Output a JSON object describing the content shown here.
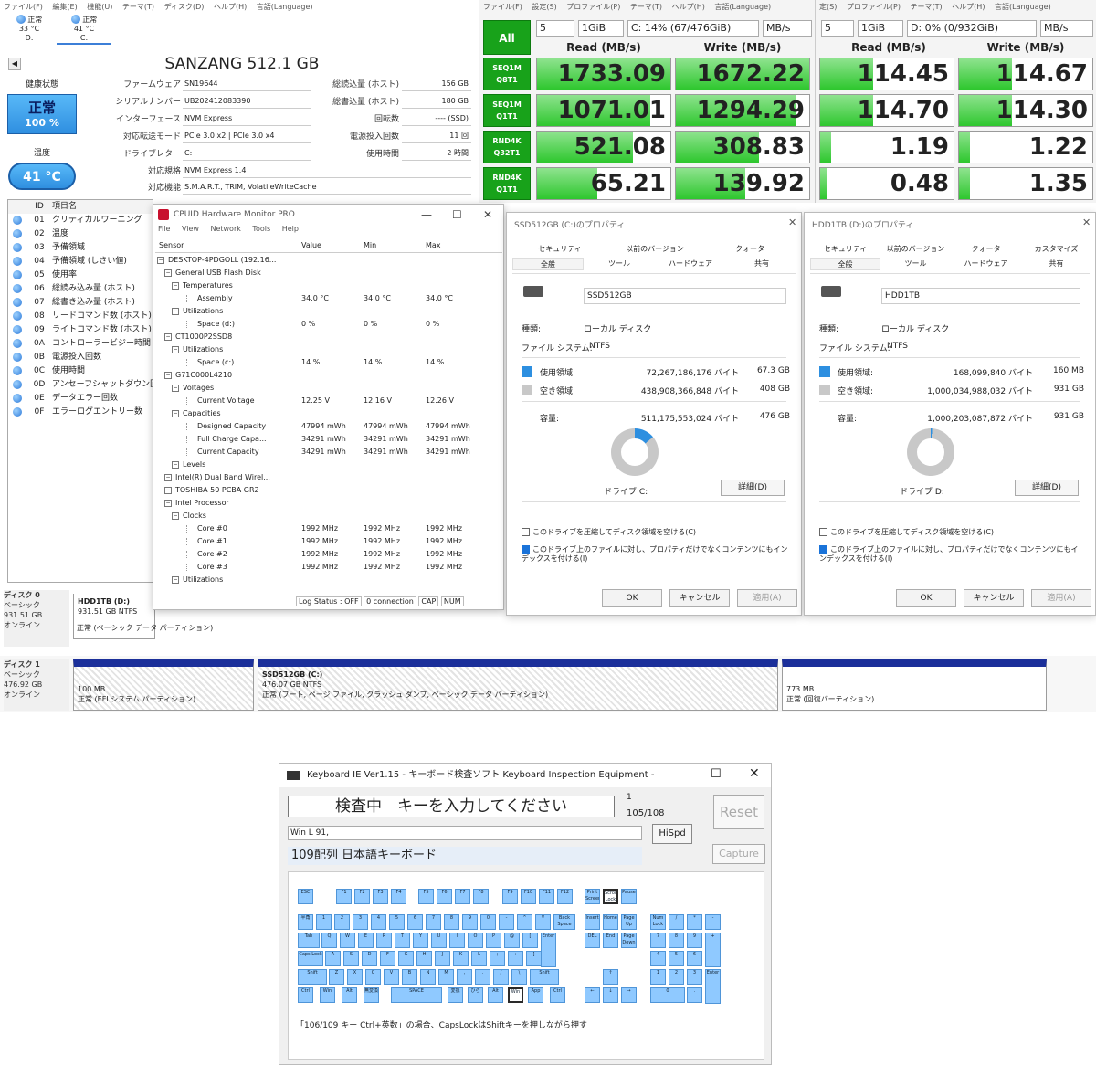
{
  "cdi": {
    "menu": [
      "ファイル(F)",
      "編集(E)",
      "機能(U)",
      "テーマ(T)",
      "ディスク(D)",
      "ヘルプ(H)",
      "言語(Language)"
    ],
    "drives": [
      {
        "status": "正常",
        "temp": "33 °C",
        "letter": "D:"
      },
      {
        "status": "正常",
        "temp": "41 °C",
        "letter": "C:"
      }
    ],
    "model": "SANZANG 512.1 GB",
    "health_label": "健康状態",
    "health_status": "正常",
    "health_pct": "100 %",
    "temp_label": "温度",
    "temp_value": "41 °C",
    "fields_left": [
      {
        "label": "ファームウェア",
        "value": "SN19644"
      },
      {
        "label": "シリアルナンバー",
        "value": "UB202412083390"
      },
      {
        "label": "インターフェース",
        "value": "NVM Express"
      },
      {
        "label": "対応転送モード",
        "value": "PCIe 3.0 x2 | PCIe 3.0 x4"
      },
      {
        "label": "ドライブレター",
        "value": "C:"
      }
    ],
    "fields_right": [
      {
        "label": "総読込量 (ホスト)",
        "value": "156 GB"
      },
      {
        "label": "総書込量 (ホスト)",
        "value": "180 GB"
      },
      {
        "label": "回転数",
        "value": "---- (SSD)"
      },
      {
        "label": "電源投入回数",
        "value": "11 回"
      },
      {
        "label": "使用時間",
        "value": "2 時間"
      }
    ],
    "standard_label": "対応規格",
    "standard_value": "NVM Express 1.4",
    "features_label": "対応機能",
    "features_value": "S.M.A.R.T., TRIM, VolatileWriteCache",
    "smart_header": {
      "id": "ID",
      "name": "項目名"
    },
    "smart": [
      {
        "id": "01",
        "name": "クリティカルワーニング"
      },
      {
        "id": "02",
        "name": "温度"
      },
      {
        "id": "03",
        "name": "予備領域"
      },
      {
        "id": "04",
        "name": "予備領域 (しきい値)"
      },
      {
        "id": "05",
        "name": "使用率"
      },
      {
        "id": "06",
        "name": "総読み込み量 (ホスト)"
      },
      {
        "id": "07",
        "name": "総書き込み量 (ホスト)"
      },
      {
        "id": "08",
        "name": "リードコマンド数 (ホスト)"
      },
      {
        "id": "09",
        "name": "ライトコマンド数 (ホスト)"
      },
      {
        "id": "0A",
        "name": "コントローラービジー時間"
      },
      {
        "id": "0B",
        "name": "電源投入回数"
      },
      {
        "id": "0C",
        "name": "使用時間"
      },
      {
        "id": "0D",
        "name": "アンセーフシャットダウン回数"
      },
      {
        "id": "0E",
        "name": "データエラー回数"
      },
      {
        "id": "0F",
        "name": "エラーログエントリー数"
      }
    ]
  },
  "cdm1": {
    "menu": [
      "ファイル(F)",
      "設定(S)",
      "プロファイル(P)",
      "テーマ(T)",
      "ヘルプ(H)",
      "言語(Language)"
    ],
    "all": "All",
    "count": "5",
    "size": "1GiB",
    "drive": "C: 14% (67/476GiB)",
    "unit": "MB/s",
    "read_hdr": "Read (MB/s)",
    "write_hdr": "Write (MB/s)",
    "rows": [
      {
        "l1": "SEQ1M",
        "l2": "Q8T1",
        "read": "1733.09",
        "write": "1672.22",
        "rfill": 1.0,
        "wfill": 1.0
      },
      {
        "l1": "SEQ1M",
        "l2": "Q1T1",
        "read": "1071.01",
        "write": "1294.29",
        "rfill": 0.85,
        "wfill": 0.9
      },
      {
        "l1": "RND4K",
        "l2": "Q32T1",
        "read": "521.08",
        "write": "308.83",
        "rfill": 0.72,
        "wfill": 0.62
      },
      {
        "l1": "RND4K",
        "l2": "Q1T1",
        "read": "65.21",
        "write": "139.92",
        "rfill": 0.45,
        "wfill": 0.52
      }
    ]
  },
  "cdm2": {
    "menu": [
      "定(S)",
      "プロファイル(P)",
      "テーマ(T)",
      "ヘルプ(H)",
      "言語(Language)"
    ],
    "count": "5",
    "size": "1GiB",
    "drive": "D: 0% (0/932GiB)",
    "unit": "MB/s",
    "read_hdr": "Read (MB/s)",
    "write_hdr": "Write (MB/s)",
    "rows": [
      {
        "read": "114.45",
        "write": "114.67",
        "rfill": 0.4,
        "wfill": 0.4
      },
      {
        "read": "114.70",
        "write": "114.30",
        "rfill": 0.4,
        "wfill": 0.4
      },
      {
        "read": "1.19",
        "write": "1.22",
        "rfill": 0.08,
        "wfill": 0.08
      },
      {
        "read": "0.48",
        "write": "1.35",
        "rfill": 0.05,
        "wfill": 0.08
      }
    ]
  },
  "hwm": {
    "title": "CPUID Hardware Monitor PRO",
    "menu": [
      "File",
      "View",
      "Network",
      "Tools",
      "Help"
    ],
    "cols": [
      "Sensor",
      "Value",
      "Min",
      "Max"
    ],
    "rows": [
      {
        "t": "DESKTOP-4PDGOLL (192.16...",
        "v": "",
        "mn": "",
        "mx": ""
      },
      {
        "t": "General USB Flash Disk",
        "v": "",
        "mn": "",
        "mx": ""
      },
      {
        "t": "Temperatures",
        "v": "",
        "mn": "",
        "mx": ""
      },
      {
        "t": "Assembly",
        "v": "34.0 °C",
        "mn": "34.0 °C",
        "mx": "34.0 °C"
      },
      {
        "t": "Utilizations",
        "v": "",
        "mn": "",
        "mx": ""
      },
      {
        "t": "Space (d:)",
        "v": "0 %",
        "mn": "0 %",
        "mx": "0 %"
      },
      {
        "t": "CT1000P2SSD8",
        "v": "",
        "mn": "",
        "mx": ""
      },
      {
        "t": "Utilizations",
        "v": "",
        "mn": "",
        "mx": ""
      },
      {
        "t": "Space (c:)",
        "v": "14 %",
        "mn": "14 %",
        "mx": "14 %"
      },
      {
        "t": "G71C000L4210",
        "v": "",
        "mn": "",
        "mx": ""
      },
      {
        "t": "Voltages",
        "v": "",
        "mn": "",
        "mx": ""
      },
      {
        "t": "Current Voltage",
        "v": "12.25 V",
        "mn": "12.16 V",
        "mx": "12.26 V"
      },
      {
        "t": "Capacities",
        "v": "",
        "mn": "",
        "mx": ""
      },
      {
        "t": "Designed Capacity",
        "v": "47994 mWh",
        "mn": "47994 mWh",
        "mx": "47994 mWh"
      },
      {
        "t": "Full Charge Capa...",
        "v": "34291 mWh",
        "mn": "34291 mWh",
        "mx": "34291 mWh"
      },
      {
        "t": "Current Capacity",
        "v": "34291 mWh",
        "mn": "34291 mWh",
        "mx": "34291 mWh"
      },
      {
        "t": "Levels",
        "v": "",
        "mn": "",
        "mx": ""
      },
      {
        "t": "Intel(R) Dual Band Wirel...",
        "v": "",
        "mn": "",
        "mx": ""
      },
      {
        "t": "TOSHIBA 50 PCBA GR2",
        "v": "",
        "mn": "",
        "mx": ""
      },
      {
        "t": "Intel Processor",
        "v": "",
        "mn": "",
        "mx": ""
      },
      {
        "t": "Clocks",
        "v": "",
        "mn": "",
        "mx": ""
      },
      {
        "t": "Core #0",
        "v": "1992 MHz",
        "mn": "1992 MHz",
        "mx": "1992 MHz"
      },
      {
        "t": "Core #1",
        "v": "1992 MHz",
        "mn": "1992 MHz",
        "mx": "1992 MHz"
      },
      {
        "t": "Core #2",
        "v": "1992 MHz",
        "mn": "1992 MHz",
        "mx": "1992 MHz"
      },
      {
        "t": "Core #3",
        "v": "1992 MHz",
        "mn": "1992 MHz",
        "mx": "1992 MHz"
      },
      {
        "t": "Utilizations",
        "v": "",
        "mn": "",
        "mx": ""
      }
    ],
    "status": [
      "Log Status : OFF",
      "0 connection",
      "CAP",
      "NUM"
    ]
  },
  "prop1": {
    "title": "SSD512GB (C:)のプロパティ",
    "tabs_top": [
      "セキュリティ",
      "以前のバージョン",
      "クォータ"
    ],
    "tabs_bot": [
      "全般",
      "ツール",
      "ハードウェア",
      "共有"
    ],
    "name": "SSD512GB",
    "type_lbl": "種類:",
    "type_val": "ローカル ディスク",
    "fs_lbl": "ファイル システム:",
    "fs_val": "NTFS",
    "used_lbl": "使用領域:",
    "used_bytes": "72,267,186,176 バイト",
    "used_gb": "67.3 GB",
    "free_lbl": "空き領域:",
    "free_bytes": "438,908,366,848 バイト",
    "free_gb": "408 GB",
    "cap_lbl": "容量:",
    "cap_bytes": "511,175,553,024 バイト",
    "cap_gb": "476 GB",
    "used_fraction": 0.14,
    "drive_lbl": "ドライブ C:",
    "detail": "詳細(D)",
    "compress": "このドライブを圧縮してディスク領域を空ける(C)",
    "index": "このドライブ上のファイルに対し、プロパティだけでなくコンテンツにもインデックスを付ける(I)",
    "ok": "OK",
    "cancel": "キャンセル",
    "apply": "適用(A)"
  },
  "prop2": {
    "title": "HDD1TB (D:)のプロパティ",
    "tabs_top": [
      "セキュリティ",
      "以前のバージョン",
      "クォータ",
      "カスタマイズ"
    ],
    "tabs_bot": [
      "全般",
      "ツール",
      "ハードウェア",
      "共有"
    ],
    "name": "HDD1TB",
    "type_lbl": "種類:",
    "type_val": "ローカル ディスク",
    "fs_lbl": "ファイル システム:",
    "fs_val": "NTFS",
    "used_lbl": "使用領域:",
    "used_bytes": "168,099,840 バイト",
    "used_gb": "160 MB",
    "free_lbl": "空き領域:",
    "free_bytes": "1,000,034,988,032 バイト",
    "free_gb": "931 GB",
    "cap_lbl": "容量:",
    "cap_bytes": "1,000,203,087,872 バイト",
    "cap_gb": "931 GB",
    "used_fraction": 0.01,
    "drive_lbl": "ドライブ D:",
    "detail": "詳細(D)",
    "compress": "このドライブを圧縮してディスク領域を空ける(C)",
    "index": "このドライブ上のファイルに対し、プロパティだけでなくコンテンツにもインデックスを付ける(I)",
    "ok": "OK",
    "cancel": "キャンセル",
    "apply": "適用(A)"
  },
  "diskmgmt": {
    "disk0": {
      "name": "ディスク 0",
      "type": "ベーシック",
      "size": "931.51 GB",
      "state": "オンライン",
      "part_name": "HDD1TB (D:)",
      "part_size": "931.51 GB NTFS",
      "part_status": "正常 (ベーシック データ パーティション)"
    },
    "disk1": {
      "name": "ディスク 1",
      "type": "ベーシック",
      "size": "476.92 GB",
      "state": "オンライン",
      "p1_size": "100 MB",
      "p1_status": "正常 (EFI システム パーティション)",
      "p2_name": "SSD512GB (C:)",
      "p2_size": "476.07 GB NTFS",
      "p2_status": "正常 (ブート, ページ ファイル, クラッシュ ダンプ, ベーシック データ パーティション)",
      "p3_size": "773 MB",
      "p3_status": "正常 (回復パーティション)"
    }
  },
  "kbd": {
    "title": "Keyboard IE Ver1.15 - キーボード検査ソフト Keyboard Inspection Equipment -",
    "prompt": "検査中　キーを入力してください",
    "count_top": "1",
    "count": "105/108",
    "reset": "Reset",
    "log": "Win L 91,",
    "hispd": "HiSpd",
    "layout": "109配列 日本語キーボード",
    "capture": "Capture",
    "note": "「106/109 キー Ctrl+英数」の場合、CapsLockはShiftキーを押しながら押す",
    "fn_keys": [
      "ESC",
      "F1",
      "F2",
      "F3",
      "F4",
      "F5",
      "F6",
      "F7",
      "F8",
      "F9",
      "F10",
      "F11",
      "F12",
      "Print Screen",
      "Scroll Lock",
      "Pause"
    ],
    "num_row": [
      "半角",
      "1",
      "2",
      "3",
      "4",
      "5",
      "6",
      "7",
      "8",
      "9",
      "0",
      "-",
      "^",
      "¥",
      "Back Space"
    ],
    "tab_row": [
      "Tab",
      "Q",
      "W",
      "E",
      "R",
      "T",
      "Y",
      "U",
      "I",
      "O",
      "P",
      "@",
      "[",
      "Enter"
    ],
    "caps_row": [
      "Caps Lock",
      "A",
      "S",
      "D",
      "F",
      "G",
      "H",
      "J",
      "K",
      "L",
      ";",
      ":",
      "]"
    ],
    "shift_row": [
      "Shift",
      "Z",
      "X",
      "C",
      "V",
      "B",
      "N",
      "M",
      ",",
      ".",
      "/",
      "\\",
      "Shift"
    ],
    "ctrl_row": [
      "Ctrl",
      "Win",
      "Alt",
      "無変換",
      "SPACE",
      "変換",
      "ひら",
      "Alt",
      "Win",
      "App",
      "Ctrl"
    ],
    "nav_top": [
      "Insert",
      "Home",
      "Page Up"
    ],
    "nav_bot": [
      "DEL",
      "End",
      "Page Down"
    ],
    "arrows": [
      "↑",
      "←",
      "↓",
      "→"
    ],
    "numpad": [
      "Num Lock",
      "/",
      "*",
      "-",
      "7",
      "8",
      "9",
      "+",
      "4",
      "5",
      "6",
      "1",
      "2",
      "3",
      "Enter",
      "0",
      "."
    ]
  }
}
